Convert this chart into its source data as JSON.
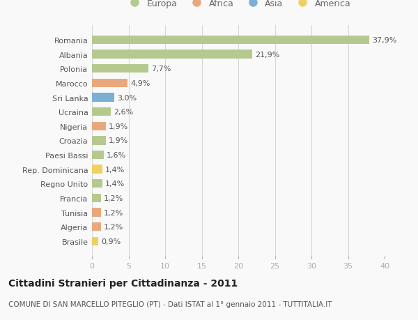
{
  "categories": [
    "Romania",
    "Albania",
    "Polonia",
    "Marocco",
    "Sri Lanka",
    "Ucraina",
    "Nigeria",
    "Croazia",
    "Paesi Bassi",
    "Rep. Dominicana",
    "Regno Unito",
    "Francia",
    "Tunisia",
    "Algeria",
    "Brasile"
  ],
  "values": [
    37.9,
    21.9,
    7.7,
    4.9,
    3.0,
    2.6,
    1.9,
    1.9,
    1.6,
    1.4,
    1.4,
    1.2,
    1.2,
    1.2,
    0.9
  ],
  "labels": [
    "37,9%",
    "21,9%",
    "7,7%",
    "4,9%",
    "3,0%",
    "2,6%",
    "1,9%",
    "1,9%",
    "1,6%",
    "1,4%",
    "1,4%",
    "1,2%",
    "1,2%",
    "1,2%",
    "0,9%"
  ],
  "colors": [
    "#b5c98e",
    "#b5c98e",
    "#b5c98e",
    "#e8a87c",
    "#7bafd4",
    "#b5c98e",
    "#e8a87c",
    "#b5c98e",
    "#b5c98e",
    "#f0d060",
    "#b5c98e",
    "#b5c98e",
    "#e8a87c",
    "#e8a87c",
    "#f0d060"
  ],
  "legend_labels": [
    "Europa",
    "Africa",
    "Asia",
    "America"
  ],
  "legend_colors": [
    "#b5c98e",
    "#e8a87c",
    "#7bafd4",
    "#f0d060"
  ],
  "title": "Cittadini Stranieri per Cittadinanza - 2011",
  "subtitle": "COMUNE DI SAN MARCELLO PITEGLIO (PT) - Dati ISTAT al 1° gennaio 2011 - TUTTITALIA.IT",
  "xlim": [
    0,
    40
  ],
  "xticks": [
    0,
    5,
    10,
    15,
    20,
    25,
    30,
    35,
    40
  ],
  "bg_color": "#f9f9f9",
  "bar_height": 0.6,
  "grid_color": "#d8d8d8",
  "title_fontsize": 10,
  "subtitle_fontsize": 7.5,
  "tick_fontsize": 8,
  "label_fontsize": 8
}
